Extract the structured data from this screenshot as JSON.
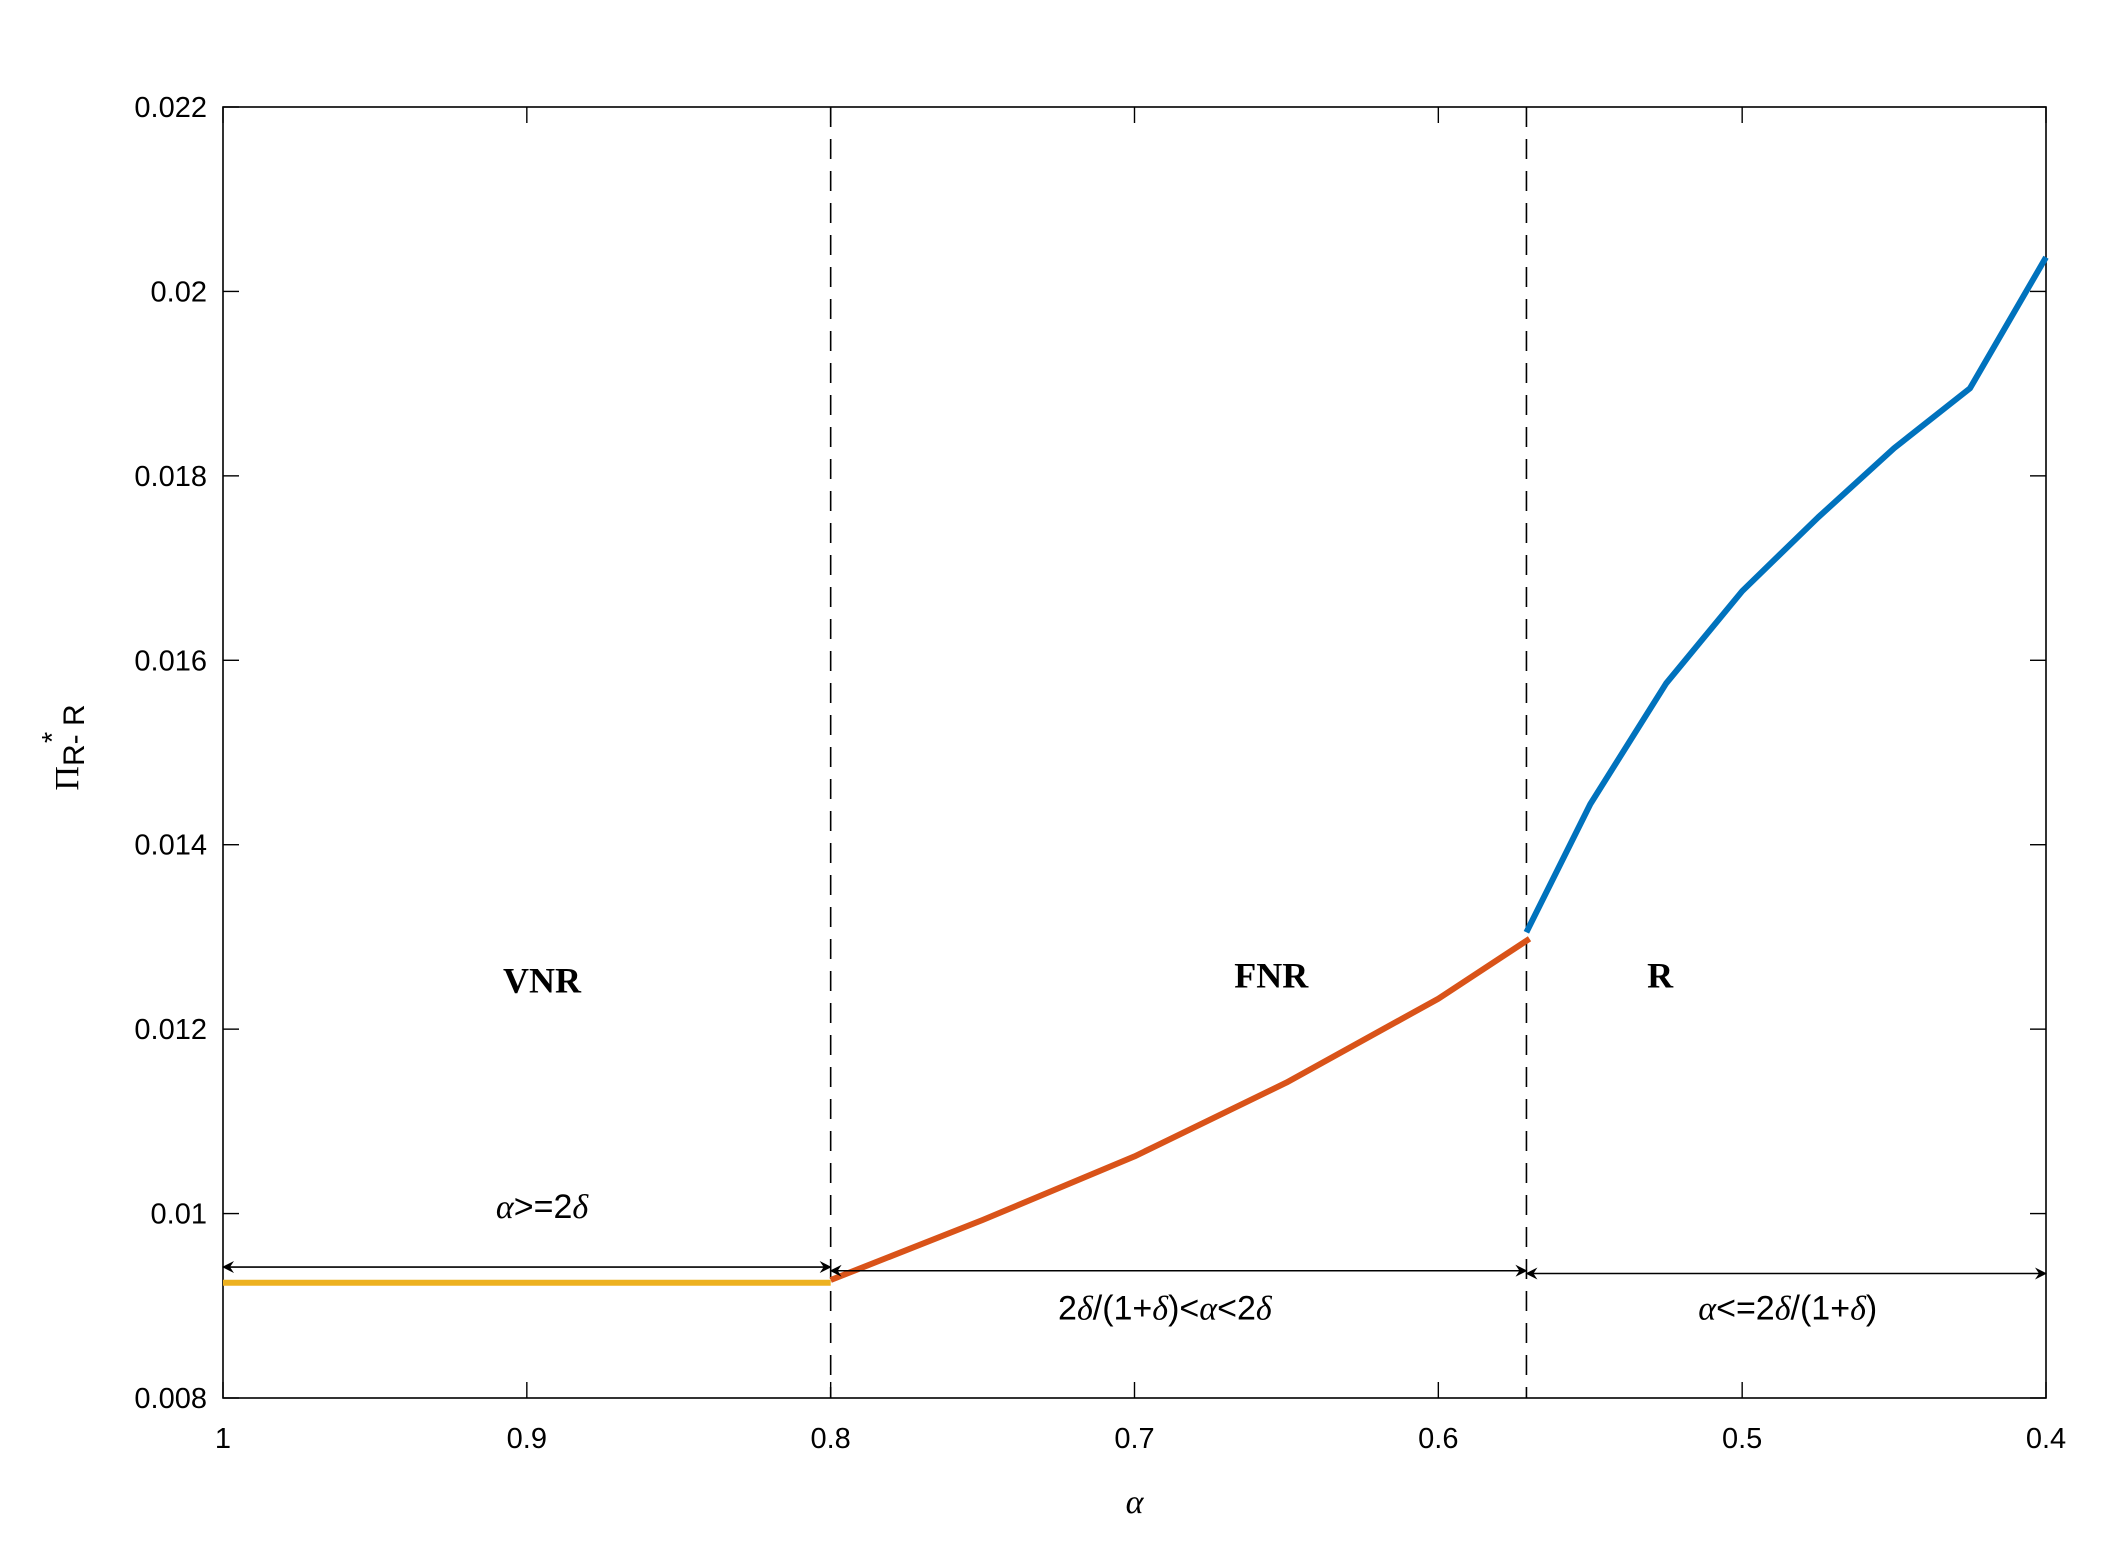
{
  "chart_data": {
    "type": "line",
    "title": "",
    "xlabel": "α",
    "ylabel": {
      "base": "Π",
      "superscript": "*",
      "subscript": "R- R"
    },
    "xlim": [
      1,
      0.4
    ],
    "ylim": [
      0.008,
      0.022
    ],
    "x_reversed": true,
    "grid": false,
    "x_ticks": [
      1,
      0.9,
      0.8,
      0.7,
      0.6,
      0.5,
      0.4
    ],
    "x_tick_labels": [
      "1",
      "0.9",
      "0.8",
      "0.7",
      "0.6",
      "0.5",
      "0.4"
    ],
    "y_ticks": [
      0.008,
      0.01,
      0.012,
      0.014,
      0.016,
      0.018,
      0.02,
      0.022
    ],
    "y_tick_labels": [
      "0.008",
      "0.01",
      "0.012",
      "0.014",
      "0.016",
      "0.018",
      "0.02",
      "0.022"
    ],
    "series": [
      {
        "color": "#EDB120",
        "x": [
          1.0,
          0.9,
          0.8
        ],
        "y": [
          0.00925,
          0.00925,
          0.00925
        ]
      },
      {
        "color": "#D95319",
        "x": [
          0.8,
          0.75,
          0.7,
          0.65,
          0.6,
          0.57
        ],
        "y": [
          0.00928,
          0.00993,
          0.01062,
          0.01142,
          0.01233,
          0.01298
        ]
      },
      {
        "color": "#0072BD",
        "x": [
          0.571,
          0.55,
          0.525,
          0.5,
          0.475,
          0.45,
          0.425,
          0.4
        ],
        "y": [
          0.01305,
          0.01444,
          0.01575,
          0.01675,
          0.01755,
          0.0183,
          0.01895,
          0.02037
        ]
      }
    ],
    "boundaries": [
      0.8,
      0.571
    ],
    "regions": [
      {
        "label": "VNR",
        "x": 0.895,
        "y": 0.0124
      },
      {
        "label": "FNR",
        "x": 0.655,
        "y": 0.01245
      },
      {
        "label": "R",
        "x": 0.527,
        "y": 0.01245
      }
    ],
    "conditions": [
      {
        "text": "α>=2δ",
        "from": 1.0,
        "to": 0.8,
        "y": 0.00942,
        "label_x": 0.895,
        "label_y": 0.00995
      },
      {
        "text": "2δ/(1+δ)<α<2δ",
        "from": 0.8,
        "to": 0.571,
        "y": 0.00938,
        "label_x": 0.69,
        "label_y": 0.00885
      },
      {
        "text": "α<=2δ/(1+δ)",
        "from": 0.571,
        "to": 0.4,
        "y": 0.00935,
        "label_x": 0.485,
        "label_y": 0.00885
      }
    ]
  }
}
